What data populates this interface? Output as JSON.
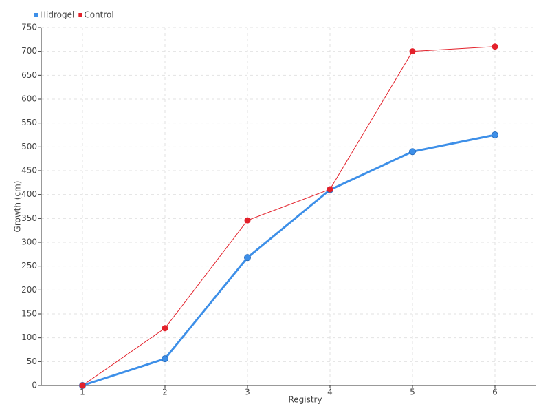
{
  "chart_data": {
    "type": "line",
    "x_label": "Registry",
    "y_label": "Growth (cm)",
    "x": [
      1,
      2,
      3,
      4,
      5,
      6
    ],
    "xlim": [
      0.5,
      6.5
    ],
    "xticks": [
      1,
      2,
      3,
      4,
      5,
      6
    ],
    "ylim": [
      0,
      750
    ],
    "yticks": [
      0,
      50,
      100,
      150,
      200,
      250,
      300,
      350,
      400,
      450,
      500,
      550,
      600,
      650,
      700,
      750
    ],
    "grid": true,
    "legend": "top-left",
    "series": [
      {
        "name": "Hidrogel",
        "color": "#3d8fe8",
        "values": [
          0,
          56,
          268,
          410,
          490,
          525
        ]
      },
      {
        "name": "Control",
        "color": "#e3212b",
        "values": [
          0,
          120,
          346,
          411,
          700,
          710
        ]
      }
    ]
  }
}
